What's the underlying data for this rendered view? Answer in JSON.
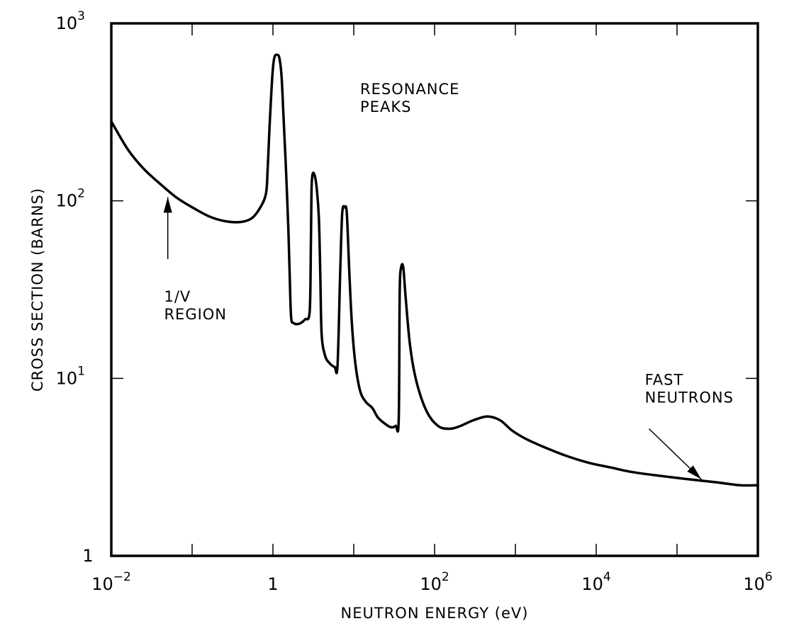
{
  "chart_data": {
    "type": "line",
    "title": "",
    "xlabel": "NEUTRON ENERGY (eV)",
    "ylabel": "CROSS SECTION (BARNS)",
    "x_scale": "log",
    "y_scale": "log",
    "xlim": [
      0.01,
      1000000
    ],
    "ylim": [
      1,
      1000
    ],
    "grid": false,
    "x_ticks": [
      {
        "value": 0.01,
        "base": "10",
        "exp": "−2"
      },
      {
        "value": 1,
        "base": "1",
        "exp": ""
      },
      {
        "value": 100,
        "base": "10",
        "exp": "2"
      },
      {
        "value": 10000,
        "base": "10",
        "exp": "4"
      },
      {
        "value": 1000000,
        "base": "10",
        "exp": "6"
      }
    ],
    "y_ticks": [
      {
        "value": 1,
        "base": "1",
        "exp": ""
      },
      {
        "value": 10,
        "base": "10",
        "exp": "1"
      },
      {
        "value": 100,
        "base": "10",
        "exp": "2"
      },
      {
        "value": 1000,
        "base": "10",
        "exp": "3"
      }
    ],
    "series": [
      {
        "name": "cross section",
        "points": [
          [
            0.01,
            280
          ],
          [
            0.016,
            195
          ],
          [
            0.025,
            152
          ],
          [
            0.04,
            125
          ],
          [
            0.063,
            105
          ],
          [
            0.1,
            92
          ],
          [
            0.16,
            82
          ],
          [
            0.25,
            77
          ],
          [
            0.4,
            76
          ],
          [
            0.55,
            80
          ],
          [
            0.7,
            92
          ],
          [
            0.82,
            110
          ],
          [
            0.86,
            150
          ],
          [
            0.9,
            240
          ],
          [
            0.95,
            390
          ],
          [
            1.0,
            560
          ],
          [
            1.05,
            650
          ],
          [
            1.12,
            665
          ],
          [
            1.2,
            640
          ],
          [
            1.28,
            500
          ],
          [
            1.35,
            300
          ],
          [
            1.45,
            150
          ],
          [
            1.55,
            70
          ],
          [
            1.62,
            35
          ],
          [
            1.68,
            22
          ],
          [
            1.8,
            20.5
          ],
          [
            2.1,
            20.3
          ],
          [
            2.5,
            21.5
          ],
          [
            2.85,
            24
          ],
          [
            2.95,
            60
          ],
          [
            3.0,
            115
          ],
          [
            3.1,
            142
          ],
          [
            3.3,
            138
          ],
          [
            3.5,
            115
          ],
          [
            3.7,
            80
          ],
          [
            3.85,
            40
          ],
          [
            4.0,
            18
          ],
          [
            4.4,
            13.5
          ],
          [
            5.0,
            12.2
          ],
          [
            5.8,
            11.6
          ],
          [
            6.3,
            11.8
          ],
          [
            6.8,
            40
          ],
          [
            7.2,
            85
          ],
          [
            7.7,
            92
          ],
          [
            8.2,
            85
          ],
          [
            8.8,
            40
          ],
          [
            9.5,
            20
          ],
          [
            10.5,
            12
          ],
          [
            12.0,
            8.5
          ],
          [
            14.0,
            7.4
          ],
          [
            17.0,
            6.8
          ],
          [
            20.0,
            6.0
          ],
          [
            25.0,
            5.5
          ],
          [
            29.0,
            5.3
          ],
          [
            33.0,
            5.4
          ],
          [
            36.0,
            5.8
          ],
          [
            37.0,
            30
          ],
          [
            38.5,
            42
          ],
          [
            41.0,
            42
          ],
          [
            44.0,
            28
          ],
          [
            50.0,
            15
          ],
          [
            60.0,
            9.5
          ],
          [
            80.0,
            6.5
          ],
          [
            110.0,
            5.4
          ],
          [
            150.0,
            5.2
          ],
          [
            200.0,
            5.35
          ],
          [
            300.0,
            5.8
          ],
          [
            450.0,
            6.1
          ],
          [
            650.0,
            5.8
          ],
          [
            900.0,
            5.1
          ],
          [
            1300.0,
            4.6
          ],
          [
            2000.0,
            4.2
          ],
          [
            4000.0,
            3.7
          ],
          [
            8000.0,
            3.35
          ],
          [
            15000.0,
            3.15
          ],
          [
            30000.0,
            2.95
          ],
          [
            100000.0,
            2.75
          ],
          [
            300000.0,
            2.6
          ],
          [
            600000.0,
            2.5
          ],
          [
            1000000.0,
            2.5
          ]
        ]
      }
    ],
    "annotations": [
      {
        "lines": [
          "RESONANCE",
          "PEAKS"
        ],
        "x": 12,
        "y": 400,
        "arrow": false
      },
      {
        "lines": [
          "1/V",
          "REGION"
        ],
        "x": 0.045,
        "y": 27,
        "arrow": true,
        "arrow_from": [
          0.05,
          47
        ],
        "arrow_to": [
          0.05,
          105
        ]
      },
      {
        "lines": [
          "FAST",
          "NEUTRONS"
        ],
        "x": 40000,
        "y": 9.2,
        "arrow": true,
        "arrow_from": [
          45000,
          5.2
        ],
        "arrow_to": [
          200000,
          2.7
        ]
      }
    ]
  }
}
